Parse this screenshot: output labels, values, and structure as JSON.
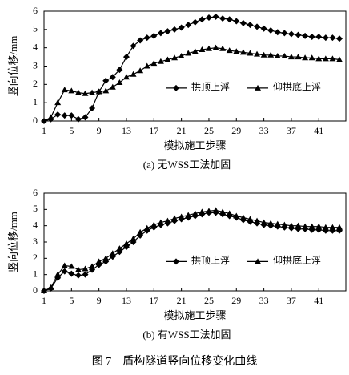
{
  "figure_title": "图 7　盾构隧道竖向位移变化曲线",
  "chart_data": [
    {
      "type": "line",
      "y_label": "竖向位移/mm",
      "x_label": "模拟施工步骤",
      "caption": "(a) 无WSS工法加固",
      "x": [
        1,
        2,
        3,
        4,
        5,
        6,
        7,
        8,
        9,
        10,
        11,
        12,
        13,
        14,
        15,
        16,
        17,
        18,
        19,
        20,
        21,
        22,
        23,
        24,
        25,
        26,
        27,
        28,
        29,
        30,
        31,
        32,
        33,
        34,
        35,
        36,
        37,
        38,
        39,
        40,
        41,
        42,
        43,
        44
      ],
      "xlim": [
        1,
        44
      ],
      "xticks": [
        1,
        5,
        9,
        13,
        17,
        21,
        25,
        29,
        33,
        37,
        41
      ],
      "ylim": [
        0,
        6
      ],
      "yticks": [
        0,
        1,
        2,
        3,
        4,
        5,
        6
      ],
      "legend": "right",
      "series": [
        {
          "name": "拱顶上浮",
          "color": "#000000",
          "marker": "diamond",
          "values": [
            0,
            0.1,
            0.35,
            0.3,
            0.3,
            0.1,
            0.2,
            0.7,
            1.6,
            2.2,
            2.4,
            2.8,
            3.5,
            4.1,
            4.4,
            4.55,
            4.65,
            4.8,
            4.9,
            5.0,
            5.1,
            5.25,
            5.4,
            5.55,
            5.65,
            5.7,
            5.6,
            5.55,
            5.45,
            5.35,
            5.25,
            5.15,
            5.05,
            4.95,
            4.85,
            4.8,
            4.75,
            4.7,
            4.65,
            4.6,
            4.6,
            4.55,
            4.55,
            4.5
          ]
        },
        {
          "name": "仰拱底上浮",
          "color": "#000000",
          "marker": "triangle",
          "values": [
            0,
            0.2,
            1.0,
            1.7,
            1.65,
            1.55,
            1.5,
            1.55,
            1.6,
            1.65,
            1.85,
            2.1,
            2.4,
            2.55,
            2.75,
            3.0,
            3.15,
            3.25,
            3.35,
            3.45,
            3.55,
            3.7,
            3.8,
            3.9,
            3.95,
            4.0,
            3.95,
            3.85,
            3.8,
            3.75,
            3.7,
            3.65,
            3.6,
            3.6,
            3.55,
            3.55,
            3.5,
            3.5,
            3.45,
            3.45,
            3.4,
            3.4,
            3.4,
            3.35
          ]
        }
      ]
    },
    {
      "type": "line",
      "y_label": "竖向位移/mm",
      "x_label": "模拟施工步骤",
      "caption": "(b) 有WSS工法加固",
      "x": [
        1,
        2,
        3,
        4,
        5,
        6,
        7,
        8,
        9,
        10,
        11,
        12,
        13,
        14,
        15,
        16,
        17,
        18,
        19,
        20,
        21,
        22,
        23,
        24,
        25,
        26,
        27,
        28,
        29,
        30,
        31,
        32,
        33,
        34,
        35,
        36,
        37,
        38,
        39,
        40,
        41,
        42,
        43,
        44
      ],
      "xlim": [
        1,
        44
      ],
      "xticks": [
        1,
        5,
        9,
        13,
        17,
        21,
        25,
        29,
        33,
        37,
        41
      ],
      "ylim": [
        0,
        6
      ],
      "yticks": [
        0,
        1,
        2,
        3,
        4,
        5,
        6
      ],
      "legend": "right",
      "series": [
        {
          "name": "拱顶上浮",
          "color": "#000000",
          "marker": "diamond",
          "values": [
            0,
            0.15,
            0.8,
            1.2,
            1.05,
            0.95,
            1.0,
            1.3,
            1.6,
            1.8,
            2.1,
            2.4,
            2.7,
            3.0,
            3.4,
            3.7,
            3.9,
            4.05,
            4.15,
            4.3,
            4.4,
            4.5,
            4.6,
            4.7,
            4.8,
            4.8,
            4.7,
            4.6,
            4.5,
            4.35,
            4.25,
            4.15,
            4.05,
            4.0,
            3.95,
            3.9,
            3.85,
            3.8,
            3.8,
            3.75,
            3.75,
            3.7,
            3.7,
            3.7
          ]
        },
        {
          "name": "仰拱底上浮",
          "color": "#000000",
          "marker": "triangle",
          "values": [
            0,
            0.2,
            1.0,
            1.55,
            1.5,
            1.3,
            1.35,
            1.5,
            1.8,
            2.0,
            2.3,
            2.6,
            2.9,
            3.2,
            3.6,
            3.85,
            4.05,
            4.2,
            4.3,
            4.45,
            4.55,
            4.65,
            4.75,
            4.85,
            4.9,
            4.95,
            4.85,
            4.75,
            4.6,
            4.5,
            4.4,
            4.3,
            4.2,
            4.15,
            4.1,
            4.05,
            4.0,
            4.0,
            3.95,
            3.95,
            3.95,
            3.9,
            3.9,
            3.9
          ]
        }
      ]
    }
  ]
}
